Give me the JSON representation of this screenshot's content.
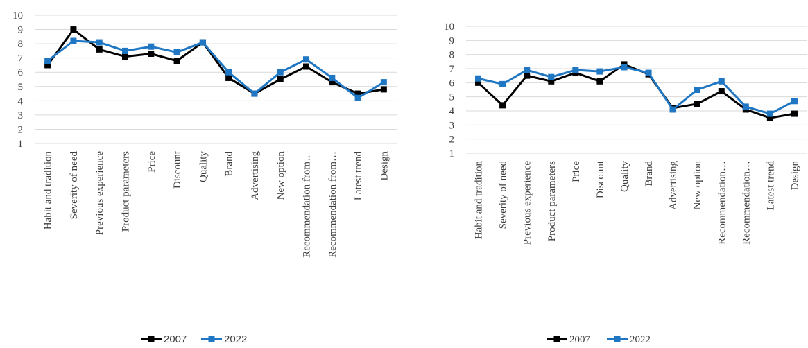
{
  "chart_data": [
    {
      "type": "line",
      "title": "",
      "xlabel": "",
      "ylabel": "",
      "ylim": [
        1,
        10
      ],
      "yticks": [
        "1",
        "2",
        "3",
        "4",
        "5",
        "6",
        "7",
        "8",
        "9",
        "10"
      ],
      "grid": true,
      "legend_position": "bottom",
      "categories": [
        "Habit and tradition",
        "Severity of need",
        "Previous experience",
        "Product parameters",
        "Price",
        "Discount",
        "Quality",
        "Brand",
        "Advertising",
        "New option",
        "Recommendation from…",
        "Recommendation from…",
        "Latest trend",
        "Design"
      ],
      "series": [
        {
          "name": "2007",
          "color": "#000000",
          "values": [
            6.5,
            9.0,
            7.6,
            7.1,
            7.3,
            6.8,
            8.1,
            5.6,
            4.5,
            5.5,
            6.4,
            5.3,
            4.5,
            4.8
          ]
        },
        {
          "name": "2022",
          "color": "#1f77c4",
          "values": [
            6.8,
            8.2,
            8.1,
            7.5,
            7.8,
            7.4,
            8.1,
            6.0,
            4.5,
            6.0,
            6.9,
            5.6,
            4.2,
            5.3
          ]
        }
      ]
    },
    {
      "type": "line",
      "title": "",
      "xlabel": "",
      "ylabel": "",
      "ylim": [
        1,
        10
      ],
      "yticks": [
        "1",
        "2",
        "3",
        "4",
        "5",
        "6",
        "7",
        "8",
        "9",
        "10"
      ],
      "grid": true,
      "legend_position": "bottom",
      "categories": [
        "Habit and tradition",
        "Severity of need",
        "Previous experience",
        "Product parameters",
        "Price",
        "Discount",
        "Quality",
        "Brand",
        "Advertising",
        "New option",
        "Recommendation…",
        "Recommendation…",
        "Latest trend",
        "Design"
      ],
      "series": [
        {
          "name": "2007",
          "color": "#000000",
          "values": [
            6.0,
            4.4,
            6.5,
            6.1,
            6.7,
            6.1,
            7.3,
            6.6,
            4.2,
            4.5,
            5.4,
            4.1,
            3.5,
            3.8
          ]
        },
        {
          "name": "2022",
          "color": "#1f77c4",
          "values": [
            6.3,
            5.9,
            6.9,
            6.4,
            6.9,
            6.8,
            7.1,
            6.7,
            4.1,
            5.5,
            6.1,
            4.3,
            3.8,
            4.7
          ]
        }
      ]
    }
  ]
}
